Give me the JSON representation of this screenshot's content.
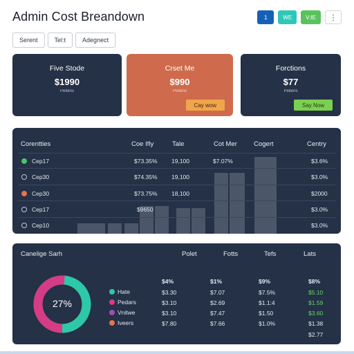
{
  "title": "Admin Cost Breandown",
  "top_actions": [
    "1",
    "WE",
    "V:IE",
    "⋮"
  ],
  "filters": [
    "Serent",
    "Tel:t",
    "Adegnect"
  ],
  "cards": [
    {
      "title": "Five Stode",
      "value": "$1990",
      "sub": "Peitens"
    },
    {
      "title": "Crset Me",
      "value": "$990",
      "sub": "Peitens",
      "button": "Cay wow"
    },
    {
      "title": "Forctions",
      "value": "$77",
      "sub": "Peitens",
      "button": "Say Now"
    }
  ],
  "table": {
    "headers": [
      "Corentties",
      "Coe Ifly",
      "Tale",
      "Cot Mer",
      "Cogert",
      "Centry"
    ],
    "rows": [
      {
        "name": "Cep17",
        "c1": "$73.35%",
        "c2": "19,100",
        "c3": "$7.07%",
        "c4": "$3.6%"
      },
      {
        "name": "Cep30",
        "c1": "$74.35%",
        "c2": "19,100",
        "c3": "",
        "c4": "$3.0%"
      },
      {
        "name": "Cep30",
        "c1": "$73.75%",
        "c2": "18,100",
        "c3": "",
        "c4": "$2000"
      },
      {
        "name": "Cep17",
        "c1": "$9650",
        "c2": "",
        "c3": "",
        "c4": "$3.0%"
      },
      {
        "name": "Cep10",
        "c1": "",
        "c2": "",
        "c3": "",
        "c4": "$3.0%"
      }
    ],
    "row_dot_colors": [
      "#4cc26c",
      "",
      "#e5734d",
      "",
      ""
    ]
  },
  "bottom": {
    "title": "Canelige Sarh",
    "headers": [
      "Polet",
      "Fotts",
      "Tefs",
      "Lats"
    ],
    "ring_label": "27%",
    "legend": [
      {
        "label": "Hate",
        "color": "#2ec8a8"
      },
      {
        "label": "Pedars",
        "color": "#d63b86"
      },
      {
        "label": "Vnitwe",
        "color": "#a44bb0"
      },
      {
        "label": "Iveers",
        "color": "#e5734d"
      }
    ],
    "col_headers": [
      "$4%",
      "$1%",
      "$9%",
      "$8%"
    ],
    "rows": [
      [
        "$3.30",
        "$7.07",
        "$7.5%",
        "$5.10"
      ],
      [
        "$3.10",
        "$2.69",
        "$1.1:4",
        "$1.59"
      ],
      [
        "$3.10",
        "$7.47",
        "$1.50",
        "$3.60"
      ],
      [
        "$7.80",
        "$7.66",
        "$1.0%",
        "$1.38"
      ],
      [
        "",
        "",
        "",
        "$2.77"
      ]
    ]
  }
}
